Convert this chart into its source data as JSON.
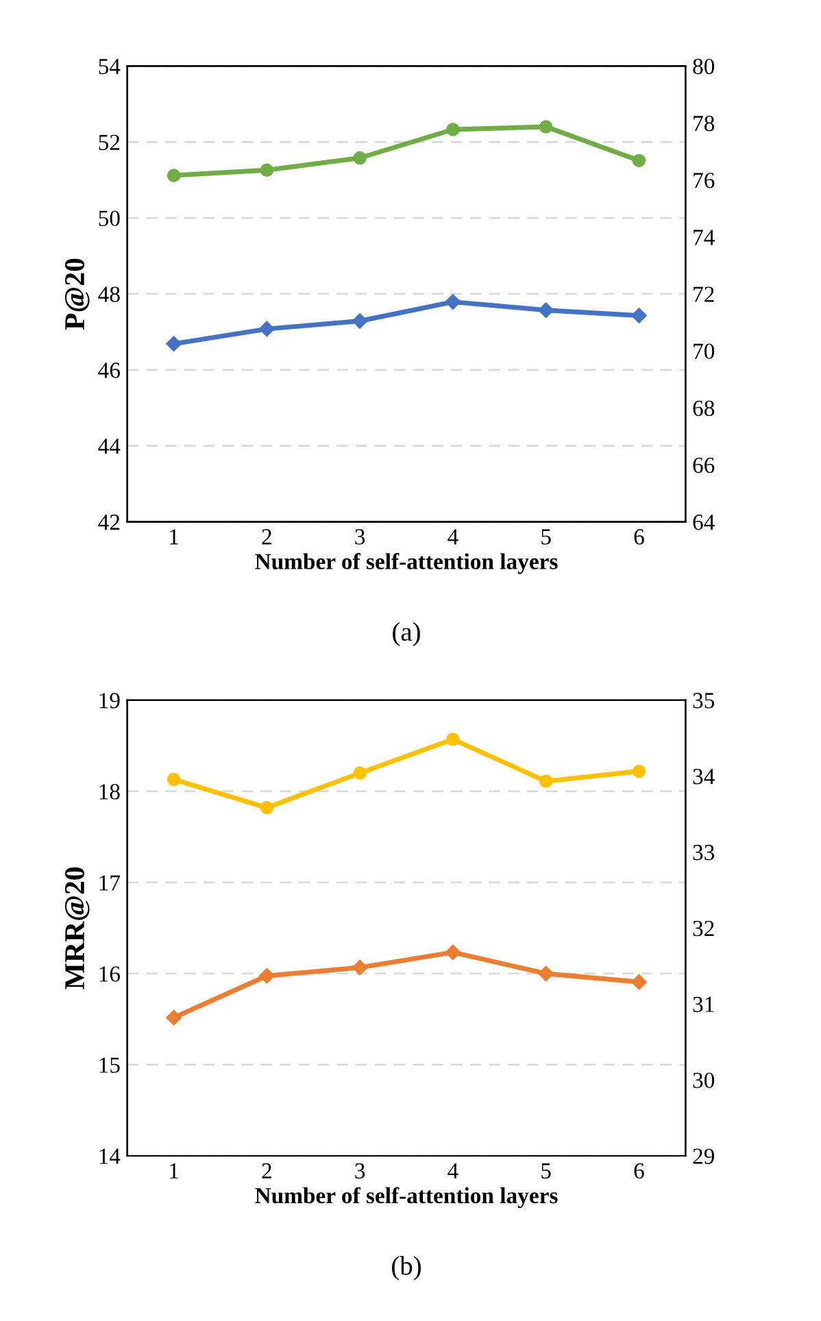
{
  "chart_data": [
    {
      "type": "line",
      "xlabel": "Number of self-attention layers",
      "ylabel": "P@20",
      "categories": [
        "1",
        "2",
        "3",
        "4",
        "5",
        "6"
      ],
      "series": [
        {
          "color": "#70ad47",
          "marker": "circle",
          "values": [
            51.12,
            51.26,
            51.58,
            52.33,
            52.4,
            51.51
          ]
        },
        {
          "color": "#4472c4",
          "marker": "diamond",
          "axis": "y2",
          "values": [
            70.25,
            70.77,
            71.05,
            71.72,
            71.43,
            71.24
          ]
        }
      ],
      "ylim": [
        42,
        54
      ],
      "yticks": [
        42,
        44,
        46,
        48,
        50,
        52,
        54
      ],
      "y2lim": [
        64,
        80
      ],
      "y2ticks": [
        64,
        66,
        68,
        70,
        72,
        74,
        76,
        78,
        80
      ],
      "grid": "y",
      "annotations": [
        "(a)"
      ]
    },
    {
      "type": "line",
      "xlabel": "Number of self-attention layers",
      "ylabel": "MRR@20",
      "categories": [
        "1",
        "2",
        "3",
        "4",
        "5",
        "6"
      ],
      "series": [
        {
          "color": "#ffc000",
          "marker": "circle",
          "values": [
            18.13,
            17.82,
            18.2,
            18.57,
            18.11,
            18.22
          ]
        },
        {
          "color": "#ed7d31",
          "marker": "diamond",
          "axis": "y2",
          "values": [
            30.82,
            31.37,
            31.48,
            31.68,
            31.4,
            31.29
          ]
        }
      ],
      "ylim": [
        14,
        19
      ],
      "yticks": [
        14,
        15,
        16,
        17,
        18,
        19
      ],
      "y2lim": [
        29,
        35
      ],
      "y2ticks": [
        29,
        30,
        31,
        32,
        33,
        34,
        35
      ],
      "grid": "y",
      "annotations": [
        "(b)"
      ]
    }
  ]
}
